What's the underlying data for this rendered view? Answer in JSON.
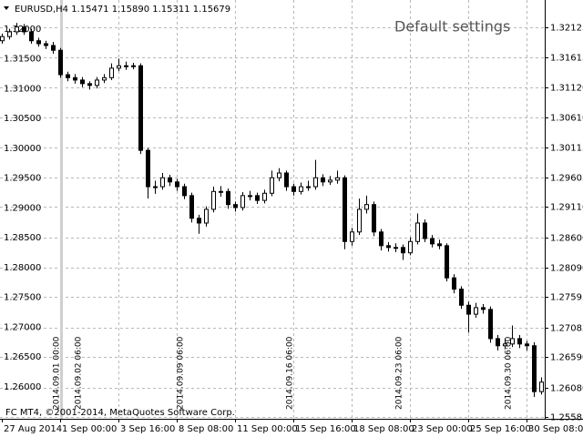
{
  "chart_data": {
    "type": "candlestick",
    "title": "EURUSD,H4  1.15471 1.15890 1.15311 1.15679",
    "annotation": "Default settings",
    "footer": "FC MT4, ©2001-2014, MetaQuotes Software Corp.",
    "categories": [
      "27 Aug 2014",
      null,
      null,
      null,
      null,
      null,
      null,
      null,
      "1 Sep 00:00",
      null,
      null,
      null,
      null,
      null,
      null,
      null,
      "3 Sep 16:00",
      null,
      null,
      null,
      null,
      null,
      null,
      null,
      "8 Sep 08:00",
      null,
      null,
      null,
      null,
      null,
      null,
      null,
      "11 Sep 00:00",
      null,
      null,
      null,
      null,
      null,
      null,
      null,
      "15 Sep 16:00",
      null,
      null,
      null,
      null,
      null,
      null,
      null,
      "18 Sep 08:00",
      null,
      null,
      null,
      null,
      null,
      null,
      null,
      "23 Sep 00:00",
      null,
      null,
      null,
      null,
      null,
      null,
      null,
      "25 Sep 16:00",
      null,
      null,
      null,
      null,
      null,
      null,
      null,
      "30 Sep 08:00",
      null,
      null
    ],
    "open": [
      1.319,
      1.3197,
      1.3205,
      1.3213,
      1.3205,
      1.319,
      1.3185,
      1.3182,
      1.3174,
      1.3133,
      1.3128,
      1.3124,
      1.3118,
      1.3115,
      1.3124,
      1.3128,
      1.3144,
      1.3148,
      1.3148,
      1.3148,
      1.3006,
      1.2945,
      1.2945,
      1.296,
      1.2953,
      1.2945,
      1.293,
      1.2892,
      1.2884,
      1.2907,
      1.2937,
      1.2937,
      1.2915,
      1.291,
      1.293,
      1.293,
      1.2922,
      1.2934,
      1.296,
      1.2968,
      1.2945,
      1.2937,
      1.2945,
      1.2945,
      1.296,
      1.2953,
      1.2956,
      1.296,
      1.2853,
      1.2869,
      1.2907,
      1.2915,
      1.2869,
      1.2846,
      1.2843,
      1.2843,
      1.2834,
      1.2853,
      1.2884,
      1.2858,
      1.2849,
      1.2846,
      1.2792,
      1.2773,
      1.2746,
      1.2731,
      1.2742,
      1.2739,
      1.269,
      1.2678,
      1.2681,
      1.269,
      1.2681,
      1.2678,
      1.2601
    ],
    "high": [
      1.3202,
      1.321,
      1.322,
      1.3218,
      1.321,
      1.3195,
      1.319,
      1.3188,
      1.3178,
      1.3138,
      1.3134,
      1.3129,
      1.3122,
      1.3129,
      1.3134,
      1.3152,
      1.316,
      1.3155,
      1.3153,
      1.3152,
      1.301,
      1.2955,
      1.2968,
      1.2965,
      1.2958,
      1.295,
      1.2935,
      1.2898,
      1.2912,
      1.2945,
      1.2946,
      1.2942,
      1.292,
      1.2936,
      1.2938,
      1.2935,
      1.294,
      1.2972,
      1.2976,
      1.2972,
      1.295,
      1.2952,
      1.2955,
      1.299,
      1.2966,
      1.2963,
      1.2972,
      1.2964,
      1.2876,
      1.2925,
      1.293,
      1.292,
      1.2874,
      1.2852,
      1.285,
      1.2848,
      1.286,
      1.29,
      1.289,
      1.2864,
      1.2856,
      1.285,
      1.2798,
      1.2778,
      1.2752,
      1.275,
      1.2748,
      1.2744,
      1.2696,
      1.269,
      1.2712,
      1.2696,
      1.2686,
      1.2684,
      1.2625
    ],
    "low": [
      1.3185,
      1.3192,
      1.32,
      1.32,
      1.3185,
      1.318,
      1.3176,
      1.3168,
      1.3128,
      1.3122,
      1.3118,
      1.3112,
      1.3108,
      1.311,
      1.3119,
      1.3124,
      1.3139,
      1.3141,
      1.3142,
      1.3,
      1.2925,
      1.2933,
      1.294,
      1.2946,
      1.2938,
      1.2924,
      1.2885,
      1.2866,
      1.2878,
      1.2902,
      1.2928,
      1.2908,
      1.2903,
      1.2905,
      1.2922,
      1.2916,
      1.2917,
      1.2929,
      1.2954,
      1.2938,
      1.293,
      1.2932,
      1.2938,
      1.294,
      1.2946,
      1.2948,
      1.295,
      1.284,
      1.2846,
      1.2864,
      1.29,
      1.2862,
      1.2838,
      1.2836,
      1.2835,
      1.2822,
      1.283,
      1.2848,
      1.2852,
      1.2843,
      1.284,
      1.2786,
      1.2766,
      1.274,
      1.27,
      1.2725,
      1.2732,
      1.2683,
      1.267,
      1.2672,
      1.2676,
      1.2674,
      1.267,
      1.2592,
      1.2596
    ],
    "close": [
      1.3197,
      1.3205,
      1.3213,
      1.3205,
      1.319,
      1.3185,
      1.3182,
      1.3174,
      1.3133,
      1.3128,
      1.3124,
      1.3118,
      1.3115,
      1.3124,
      1.3128,
      1.3144,
      1.3148,
      1.3148,
      1.3148,
      1.3006,
      1.2945,
      1.2945,
      1.296,
      1.2953,
      1.2945,
      1.293,
      1.2892,
      1.2884,
      1.2907,
      1.2937,
      1.2937,
      1.2915,
      1.291,
      1.293,
      1.293,
      1.2922,
      1.2934,
      1.296,
      1.2968,
      1.2945,
      1.2937,
      1.2945,
      1.2945,
      1.296,
      1.2953,
      1.2956,
      1.296,
      1.2853,
      1.2869,
      1.2907,
      1.2915,
      1.2869,
      1.2846,
      1.2843,
      1.2843,
      1.2834,
      1.2853,
      1.2884,
      1.2858,
      1.2849,
      1.2846,
      1.2792,
      1.2773,
      1.2746,
      1.2731,
      1.2742,
      1.2739,
      1.269,
      1.2678,
      1.2681,
      1.269,
      1.2681,
      1.2678,
      1.2601,
      1.2617
    ],
    "ylim": [
      1.25554,
      1.32324
    ],
    "yticks": [
      1.32125,
      1.31615,
      {
        "value": 1.3112,
        "label": "1.31120"
      },
      {
        "value": 1.3061,
        "label": "1.30610"
      },
      1.30115,
      1.29605,
      {
        "value": 1.2911,
        "label": "1.29110"
      },
      {
        "value": 1.286,
        "label": "1.28600"
      },
      {
        "value": 1.2809,
        "label": "1.28090"
      },
      1.27595,
      1.27085,
      {
        "value": 1.2659,
        "label": "1.26590"
      },
      {
        "value": 1.2608,
        "label": "1.26080"
      },
      1.25585
    ],
    "y2lim": [
      1.25465,
      1.32229
    ],
    "y2ticks": [
      {
        "value": 1.32,
        "label": "1.32000"
      },
      {
        "value": 1.315,
        "label": "1.31500"
      },
      {
        "value": 1.31,
        "label": "1.31000"
      },
      {
        "value": 1.305,
        "label": "1.30500"
      },
      {
        "value": 1.3,
        "label": "1.30000"
      },
      {
        "value": 1.295,
        "label": "1.29500"
      },
      {
        "value": 1.29,
        "label": "1.29000"
      },
      {
        "value": 1.285,
        "label": "1.28500"
      },
      {
        "value": 1.28,
        "label": "1.28000"
      },
      {
        "value": 1.275,
        "label": "1.27500"
      },
      {
        "value": 1.27,
        "label": "1.27000"
      },
      {
        "value": 1.265,
        "label": "1.26500"
      },
      {
        "value": 1.26,
        "label": "1.26000"
      }
    ],
    "markers": [
      {
        "x": 8,
        "label": "2014.09.01 00:00"
      },
      {
        "x": 11,
        "label": "2014.09.02 06:00"
      },
      {
        "x": 25,
        "label": "2014.09.09 06:00"
      },
      {
        "x": 40,
        "label": "2014.09.16 06:00"
      },
      {
        "x": 55,
        "label": "2014.09.23 06:00"
      },
      {
        "x": 70,
        "label": "2014.09.30 06:00"
      }
    ],
    "grid": true,
    "color": "#000000"
  }
}
